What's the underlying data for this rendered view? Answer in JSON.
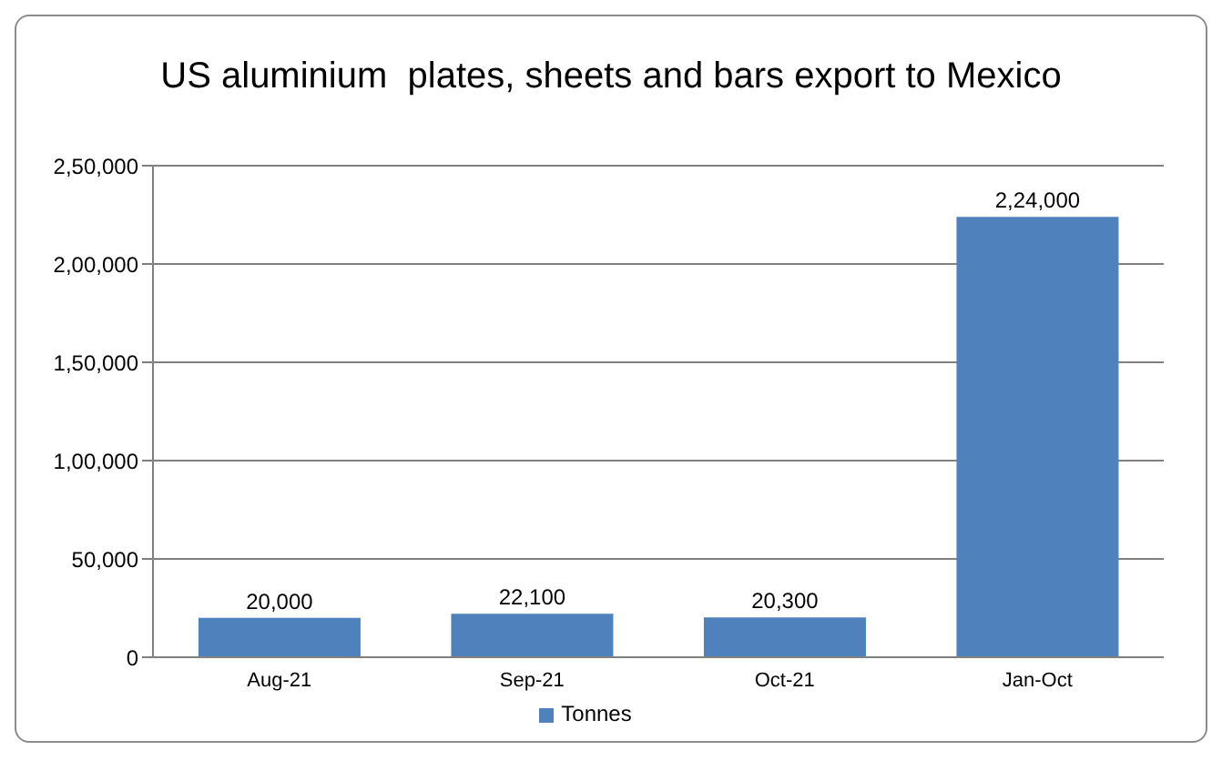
{
  "chart_data": {
    "type": "bar",
    "title": "US aluminium  plates, sheets and bars export to Mexico",
    "categories": [
      "Aug-21",
      "Sep-21",
      "Oct-21",
      "Jan-Oct"
    ],
    "series": [
      {
        "name": "Tonnes",
        "color": "#4f81bd",
        "values": [
          20000,
          22100,
          20300,
          224000
        ],
        "value_labels": [
          "20,000",
          "22,100",
          "20,300",
          "2,24,000"
        ]
      }
    ],
    "ylim": [
      0,
      250000
    ],
    "yticks": [
      0,
      {
        "value": 50000,
        "label": "50,000"
      },
      {
        "value": 100000,
        "label": "1,00,000"
      },
      {
        "value": 150000,
        "label": "1,50,000"
      },
      {
        "value": 200000,
        "label": "2,00,000"
      },
      {
        "value": 250000,
        "label": "2,50,000"
      }
    ],
    "grid": "y",
    "legend": "bottom"
  }
}
